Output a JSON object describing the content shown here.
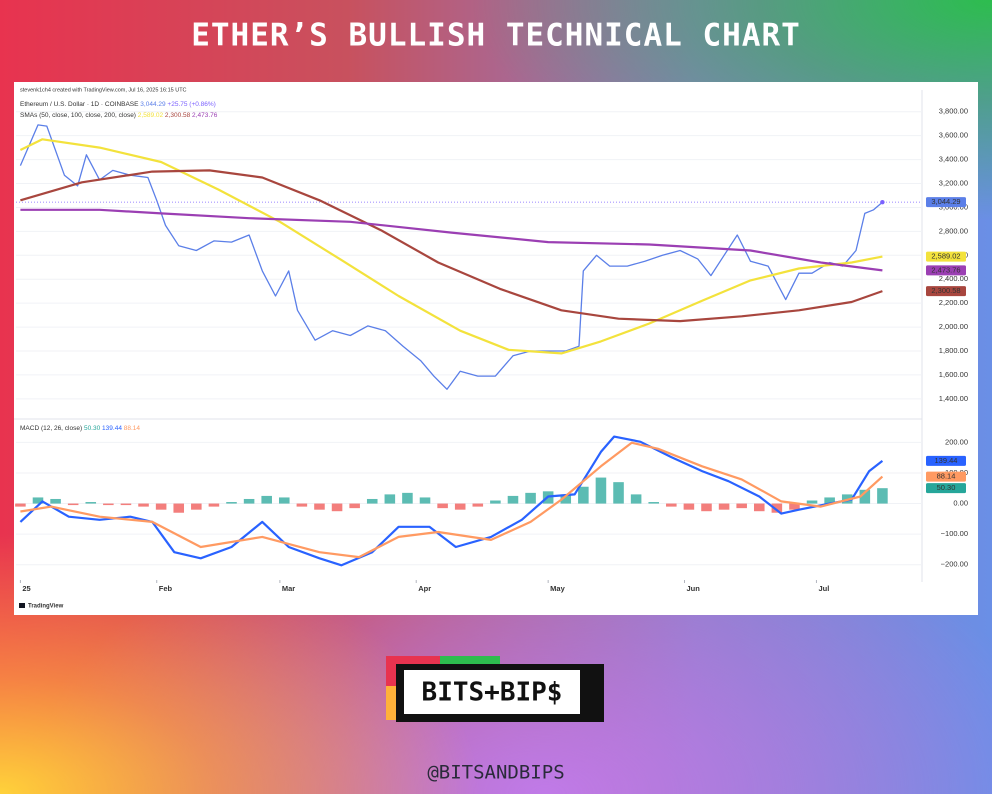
{
  "page": {
    "title": "ETHER’S BULLISH TECHNICAL CHART",
    "credit": "stevenk1ch4 created with TradingView.com, Jul 16, 2025 16:15 UTC",
    "brand": "TradingView",
    "logo": "BITS+BIP$",
    "handle": "@BITSANDBIPS"
  },
  "chart_data": [
    {
      "type": "line",
      "title": "Ethereum / U.S. Dollar · 1D · COINBASE",
      "price_change": "+25.75 (+0.86%)",
      "sma_title": "SMAs (50, close, 100, close, 200, close)",
      "xlim": [
        -1,
        205
      ],
      "ylim": [
        1240,
        3940
      ],
      "grid": true,
      "yticks": [
        {
          "value": 1400,
          "label": "1,400.00"
        },
        {
          "value": 1600,
          "label": "1,600.00"
        },
        {
          "value": 1800,
          "label": "1,800.00"
        },
        {
          "value": 2000,
          "label": "2,000.00"
        },
        {
          "value": 2200,
          "label": "2,200.00"
        },
        {
          "value": 2400,
          "label": "2,400.00"
        },
        {
          "value": 2600,
          "label": "2,600.00"
        },
        {
          "value": 2800,
          "label": "2,800.00"
        },
        {
          "value": 3000,
          "label": "3,000.00"
        },
        {
          "value": 3200,
          "label": "3,200.00"
        },
        {
          "value": 3400,
          "label": "3,400.00"
        },
        {
          "value": 3600,
          "label": "3,600.00"
        },
        {
          "value": 3800,
          "label": "3,800.00"
        }
      ],
      "series": [
        {
          "color": "#5b7fe8",
          "tag_label": "3,044.29",
          "current_line": true,
          "x": [
            0,
            4,
            6,
            10,
            13,
            15,
            18,
            21,
            25,
            29,
            31,
            33,
            36,
            40,
            44,
            48,
            52,
            55,
            58,
            61,
            63,
            67,
            71,
            75,
            79,
            83,
            87,
            91,
            94,
            97,
            100,
            104,
            108,
            112,
            116,
            120,
            124,
            127,
            128,
            131,
            134,
            138,
            142,
            146,
            150,
            154,
            157,
            160,
            163,
            166,
            170,
            174,
            177,
            180,
            184,
            187,
            190,
            192,
            194,
            196
          ],
          "values": [
            3350,
            3690,
            3680,
            3270,
            3180,
            3440,
            3230,
            3310,
            3270,
            3250,
            3060,
            2850,
            2680,
            2640,
            2720,
            2710,
            2770,
            2470,
            2260,
            2470,
            2140,
            1890,
            1970,
            1930,
            2010,
            1970,
            1840,
            1720,
            1590,
            1480,
            1630,
            1590,
            1590,
            1760,
            1800,
            1800,
            1800,
            1840,
            2470,
            2600,
            2510,
            2510,
            2550,
            2600,
            2640,
            2570,
            2430,
            2600,
            2770,
            2550,
            2510,
            2230,
            2450,
            2450,
            2540,
            2510,
            2640,
            2950,
            2980,
            3044.29
          ]
        },
        {
          "color": "#f3e23c",
          "tag_label": "2,589.02",
          "x": [
            0,
            5,
            18,
            32,
            45,
            59,
            73,
            86,
            100,
            111,
            123,
            132,
            143,
            155,
            166,
            177,
            189,
            196
          ],
          "values": [
            3480,
            3570,
            3500,
            3380,
            3150,
            2880,
            2560,
            2260,
            1970,
            1810,
            1780,
            1880,
            2030,
            2220,
            2390,
            2490,
            2540,
            2589.02
          ]
        },
        {
          "color": "#a8463e",
          "tag_label": "2,300.58",
          "x": [
            0,
            14,
            30,
            43,
            55,
            68,
            82,
            95,
            109,
            123,
            136,
            150,
            164,
            177,
            189,
            196
          ],
          "values": [
            3060,
            3210,
            3300,
            3310,
            3250,
            3060,
            2810,
            2540,
            2320,
            2140,
            2070,
            2050,
            2090,
            2140,
            2210,
            2300.58
          ]
        },
        {
          "color": "#9b3fb3",
          "tag_label": "2,473.76",
          "x": [
            0,
            18,
            32,
            52,
            75,
            98,
            120,
            143,
            166,
            182,
            196
          ],
          "values": [
            2980,
            2980,
            2950,
            2910,
            2880,
            2790,
            2710,
            2690,
            2640,
            2540,
            2473.76
          ]
        }
      ]
    },
    {
      "type": "line",
      "title": "MACD (12, 26, close)",
      "xlim": [
        -1,
        205
      ],
      "ylim": [
        -250,
        270
      ],
      "grid": true,
      "xticks": [
        {
          "value": 0,
          "label": "25"
        },
        {
          "value": 31,
          "label": "Feb"
        },
        {
          "value": 59,
          "label": "Mar"
        },
        {
          "value": 90,
          "label": "Apr"
        },
        {
          "value": 120,
          "label": "May"
        },
        {
          "value": 151,
          "label": "Jun"
        },
        {
          "value": 181,
          "label": "Jul"
        }
      ],
      "yticks": [
        {
          "value": -200,
          "label": "−200.00"
        },
        {
          "value": -100,
          "label": "−100.00"
        },
        {
          "value": 0,
          "label": "0.00"
        },
        {
          "value": 100,
          "label": "100.00"
        },
        {
          "value": 200,
          "label": "200.00"
        }
      ],
      "series": [
        {
          "type": "bar",
          "color": "#26a69a",
          "negative_color": "#ef5350",
          "tag_label": "50.30",
          "x": [
            0,
            4,
            8,
            12,
            16,
            20,
            24,
            28,
            32,
            36,
            40,
            44,
            48,
            52,
            56,
            60,
            64,
            68,
            72,
            76,
            80,
            84,
            88,
            92,
            96,
            100,
            104,
            108,
            112,
            116,
            120,
            124,
            128,
            132,
            136,
            140,
            144,
            148,
            152,
            156,
            160,
            164,
            168,
            172,
            176,
            180,
            184,
            188,
            192,
            196
          ],
          "values": [
            -10,
            20,
            15,
            -5,
            5,
            -5,
            -5,
            -10,
            -20,
            -30,
            -20,
            -10,
            5,
            15,
            25,
            20,
            -10,
            -20,
            -25,
            -15,
            15,
            30,
            35,
            20,
            -15,
            -20,
            -10,
            10,
            25,
            35,
            40,
            30,
            55,
            85,
            70,
            30,
            5,
            -10,
            -20,
            -25,
            -20,
            -15,
            -25,
            -30,
            -20,
            10,
            20,
            30,
            45,
            50.3
          ]
        },
        {
          "color": "#2962ff",
          "tag_label": "139.44",
          "x": [
            0,
            5,
            11,
            18,
            25,
            30,
            35,
            41,
            48,
            55,
            61,
            68,
            73,
            80,
            86,
            93,
            99,
            107,
            114,
            120,
            126,
            132,
            135,
            141,
            148,
            155,
            161,
            168,
            173,
            177,
            184,
            189,
            193,
            196
          ],
          "values": [
            -60,
            7,
            -43,
            -53,
            -43,
            -60,
            -159,
            -179,
            -142,
            -60,
            -142,
            -179,
            -202,
            -159,
            -76,
            -76,
            -142,
            -109,
            -53,
            23,
            30,
            169,
            219,
            202,
            152,
            106,
            73,
            23,
            -33,
            -20,
            0,
            13,
            106,
            139.44
          ]
        },
        {
          "color": "#ff9a62",
          "tag_label": "88.14",
          "x": [
            0,
            7,
            18,
            30,
            41,
            55,
            68,
            77,
            86,
            95,
            107,
            116,
            123,
            132,
            139,
            145,
            155,
            164,
            173,
            182,
            191,
            196
          ],
          "values": [
            -26,
            -10,
            -43,
            -60,
            -142,
            -109,
            -159,
            -175,
            -109,
            -93,
            -119,
            -60,
            13,
            122,
            199,
            179,
            122,
            79,
            7,
            -10,
            23,
            88.14
          ]
        }
      ]
    }
  ]
}
